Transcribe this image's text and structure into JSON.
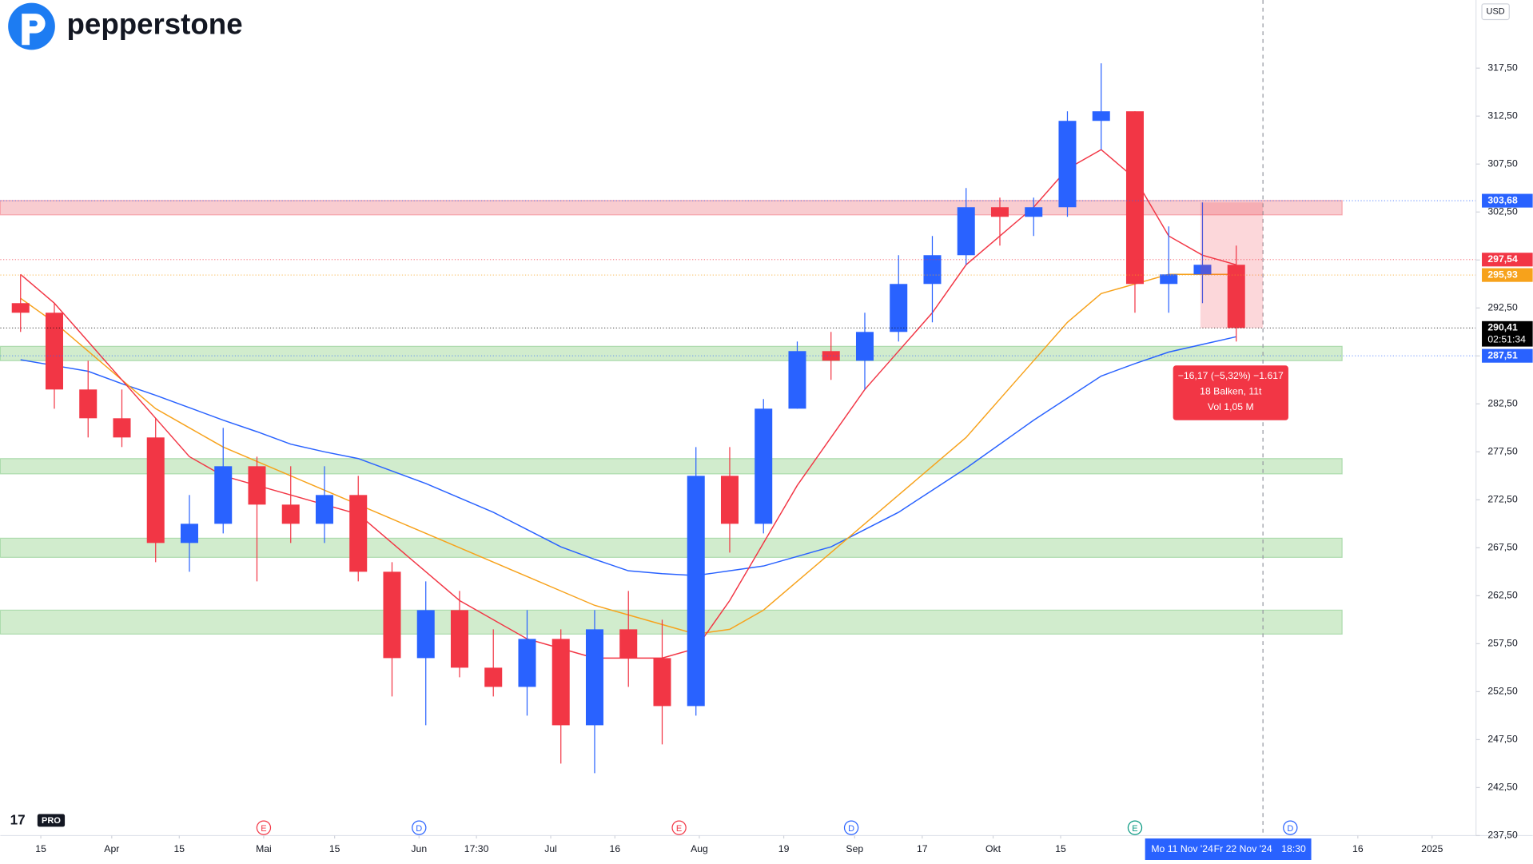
{
  "brand": "pepperstone",
  "chart_data": {
    "type": "candlestick",
    "currency": "USD",
    "up_color": "#2962ff",
    "down_color": "#f23645",
    "categories": [
      null,
      null,
      null,
      null,
      null,
      null,
      null,
      null,
      null,
      null,
      null,
      null,
      null,
      null,
      null,
      null,
      null,
      null,
      null,
      null,
      null,
      null,
      null,
      null,
      null,
      null,
      null,
      null,
      null,
      null,
      null,
      null,
      null,
      null,
      null,
      null,
      null
    ],
    "open": [
      293,
      292,
      284,
      281,
      279,
      268,
      270,
      276,
      272,
      270,
      273,
      265,
      256,
      261,
      255,
      253,
      258,
      249,
      259,
      256,
      251,
      275,
      270,
      282,
      288,
      287,
      290,
      295,
      298,
      303,
      302,
      303,
      312,
      313,
      295,
      296,
      297
    ],
    "high": [
      296,
      293,
      287,
      284,
      281,
      273,
      280,
      277,
      276,
      276,
      275,
      266,
      264,
      263,
      259,
      261,
      259,
      261,
      263,
      260,
      278,
      278,
      283,
      289,
      290,
      292,
      298,
      300,
      305,
      304,
      304,
      313,
      318,
      313,
      301,
      303.5,
      299
    ],
    "low": [
      290,
      282,
      279,
      278,
      266,
      265,
      269,
      264,
      268,
      268,
      264,
      252,
      249,
      254,
      252,
      250,
      245,
      244,
      253,
      247,
      250,
      267,
      269,
      282,
      285,
      284,
      289,
      291,
      297,
      299,
      300,
      302,
      309,
      292,
      292,
      293,
      289
    ],
    "close": [
      292,
      284,
      281,
      279,
      268,
      270,
      276,
      272,
      270,
      273,
      265,
      256,
      261,
      255,
      253,
      258,
      249,
      259,
      256,
      251,
      275,
      270,
      282,
      288,
      287,
      290,
      295,
      298,
      303,
      302,
      303,
      312,
      313,
      295,
      296,
      297,
      290.41
    ],
    "lines": [
      {
        "color": "#2962ff",
        "values": [
          287.1,
          286.5,
          285.9,
          284.6,
          283.4,
          282.1,
          280.8,
          279.6,
          278.3,
          277.5,
          276.8,
          275.5,
          274.2,
          272.7,
          271.2,
          269.4,
          267.6,
          266.3,
          265.1,
          264.8,
          264.6,
          265.1,
          265.6,
          266.6,
          267.6,
          269.4,
          271.2,
          273.5,
          275.8,
          278.3,
          280.8,
          283.1,
          285.4,
          286.7,
          287.9,
          288.7,
          289.5
        ]
      },
      {
        "color": "#f7a21b",
        "values": [
          293.5,
          291,
          288,
          285,
          282,
          280,
          278,
          276.5,
          275,
          273.5,
          272,
          270.5,
          269,
          267.5,
          266,
          264.5,
          263,
          261.5,
          260.5,
          259.5,
          258.5,
          259,
          261,
          264,
          267,
          270,
          273,
          276,
          279,
          283,
          287,
          291,
          294,
          295,
          296,
          296,
          296
        ]
      },
      {
        "color": "#f23645",
        "values": [
          296,
          293,
          289,
          285,
          281,
          277,
          275,
          274,
          273,
          272,
          271,
          268,
          265,
          262,
          260,
          258,
          257,
          256,
          256,
          256,
          257,
          262,
          268,
          274,
          279,
          284,
          288,
          292,
          297,
          300,
          303,
          307,
          309,
          306,
          300,
          298,
          297
        ]
      }
    ],
    "zones": [
      {
        "from": 302.2,
        "to": 303.7,
        "color": "#f8c7cc"
      },
      {
        "from": 287.0,
        "to": 288.5,
        "color": "#cdebc8"
      },
      {
        "from": 275.2,
        "to": 276.8,
        "color": "#cdebc8"
      },
      {
        "from": 266.5,
        "to": 268.5,
        "color": "#cdebc8"
      },
      {
        "from": 258.5,
        "to": 261.0,
        "color": "#cdebc8"
      }
    ],
    "xlim": [
      -0.6,
      43.1
    ],
    "ylim": [
      237.5,
      324.6
    ],
    "xticks": [
      {
        "value": 0.6,
        "label": "15"
      },
      {
        "value": 2.7,
        "label": "Apr"
      },
      {
        "value": 4.7,
        "label": "15"
      },
      {
        "value": 7.2,
        "label": "Mai"
      },
      {
        "value": 9.3,
        "label": "15"
      },
      {
        "value": 11.8,
        "label": "Jun"
      },
      {
        "value": 13.5,
        "label": "17:30"
      },
      {
        "value": 15.7,
        "label": "Jul"
      },
      {
        "value": 17.6,
        "label": "16"
      },
      {
        "value": 20.1,
        "label": "Aug"
      },
      {
        "value": 22.6,
        "label": "19"
      },
      {
        "value": 24.7,
        "label": "Sep"
      },
      {
        "value": 26.7,
        "label": "17"
      },
      {
        "value": 28.8,
        "label": "Okt"
      },
      {
        "value": 30.8,
        "label": "15"
      },
      {
        "value": 39.6,
        "label": "16"
      },
      {
        "value": 41.8,
        "label": "2025"
      }
    ],
    "x_range_labels": [
      {
        "value": 34.4,
        "label": "Mo 11 Nov '24"
      },
      {
        "value": 36.2,
        "label": "Fr 22 Nov '24"
      },
      {
        "value": 37.7,
        "label": "18:30"
      }
    ],
    "events": [
      {
        "value": 7.2,
        "label": "E",
        "color": "#f23645"
      },
      {
        "value": 11.8,
        "label": "D",
        "color": "#2962ff"
      },
      {
        "value": 19.5,
        "label": "E",
        "color": "#f23645"
      },
      {
        "value": 24.6,
        "label": "D",
        "color": "#2962ff"
      },
      {
        "value": 33.0,
        "label": "E",
        "color": "#089981"
      },
      {
        "value": 37.6,
        "label": "D",
        "color": "#2962ff"
      }
    ],
    "yticks": [
      {
        "value": 237.5,
        "label": "237,50"
      },
      {
        "value": 242.5,
        "label": "242,50"
      },
      {
        "value": 247.5,
        "label": "247,50"
      },
      {
        "value": 252.5,
        "label": "252,50"
      },
      {
        "value": 257.5,
        "label": "257,50"
      },
      {
        "value": 262.5,
        "label": "262,50"
      },
      {
        "value": 267.5,
        "label": "267,50"
      },
      {
        "value": 272.5,
        "label": "272,50"
      },
      {
        "value": 277.5,
        "label": "277,50"
      },
      {
        "value": 282.5,
        "label": "282,50"
      },
      {
        "value": 287.5,
        "label": "287,50"
      },
      {
        "value": 292.5,
        "label": "292,50"
      },
      {
        "value": 297.5,
        "label": "297,50"
      },
      {
        "value": 302.5,
        "label": "302,50"
      },
      {
        "value": 307.5,
        "label": "307,50"
      },
      {
        "value": 312.5,
        "label": "312,50"
      },
      {
        "value": 317.5,
        "label": "317,50"
      }
    ],
    "price_labels": [
      {
        "value": 303.68,
        "label": "303,68",
        "color": "#2962ff"
      },
      {
        "value": 297.54,
        "label": "297,54",
        "color": "#f23645"
      },
      {
        "value": 295.93,
        "label": "295,93",
        "color": "#f7a21b"
      },
      {
        "value": 290.41,
        "label": "290,41",
        "color": "#000000"
      },
      {
        "value": 287.51,
        "label": "287,51",
        "color": "#2962ff"
      }
    ],
    "countdown": "02:51:34",
    "measure": {
      "lines": [
        "−16,17 (−5,32%) −1.617",
        "18 Balken, 11t",
        "Vol 1,05 M"
      ]
    },
    "platform_badge": "PRO"
  }
}
